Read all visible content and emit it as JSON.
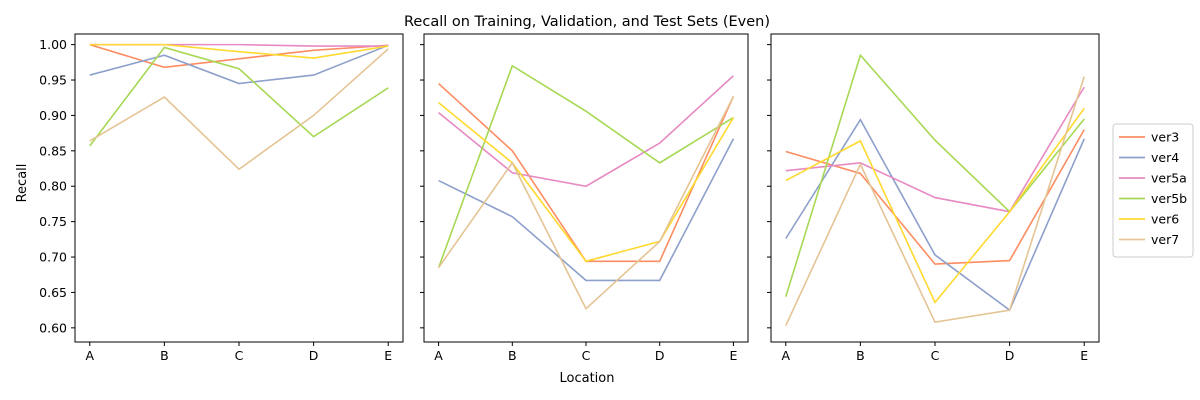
{
  "figure": {
    "title": "Recall on Training, Validation, and Test Sets (Even)",
    "xlabel": "Location",
    "ylabel": "Recall"
  },
  "colors": {
    "ver3": "#fc8d62",
    "ver4": "#8da0cb",
    "ver5a": "#e78ac3",
    "ver5b": "#a6d854",
    "ver6": "#ffd92f",
    "ver7": "#e5c494"
  },
  "chart_data": [
    {
      "type": "line",
      "categories": [
        "A",
        "B",
        "C",
        "D",
        "E"
      ],
      "ylim": [
        0.58,
        1.015
      ],
      "yticks": [
        "0.60",
        "0.65",
        "0.70",
        "0.75",
        "0.80",
        "0.85",
        "0.90",
        "0.95",
        "1.00"
      ],
      "grid": false,
      "series": [
        {
          "name": "ver3",
          "values": [
            1.0,
            0.968,
            0.98,
            0.992,
            0.999
          ]
        },
        {
          "name": "ver4",
          "values": [
            0.957,
            0.985,
            0.945,
            0.957,
            0.999
          ]
        },
        {
          "name": "ver5a",
          "values": [
            1.0,
            1.0,
            1.0,
            0.998,
            0.998
          ]
        },
        {
          "name": "ver5b",
          "values": [
            0.857,
            0.996,
            0.966,
            0.87,
            0.939
          ]
        },
        {
          "name": "ver6",
          "values": [
            1.0,
            1.0,
            0.99,
            0.981,
            0.998
          ]
        },
        {
          "name": "ver7",
          "values": [
            0.864,
            0.926,
            0.824,
            0.9,
            0.994
          ]
        }
      ]
    },
    {
      "type": "line",
      "categories": [
        "A",
        "B",
        "C",
        "D",
        "E"
      ],
      "ylim": [
        0.58,
        1.015
      ],
      "grid": false,
      "series": [
        {
          "name": "ver3",
          "values": [
            0.945,
            0.85,
            0.694,
            0.694,
            0.927
          ]
        },
        {
          "name": "ver4",
          "values": [
            0.808,
            0.757,
            0.667,
            0.667,
            0.867
          ]
        },
        {
          "name": "ver5a",
          "values": [
            0.904,
            0.819,
            0.8,
            0.861,
            0.956
          ]
        },
        {
          "name": "ver5b",
          "values": [
            0.685,
            0.97,
            0.906,
            0.833,
            0.897
          ]
        },
        {
          "name": "ver6",
          "values": [
            0.918,
            0.833,
            0.694,
            0.722,
            0.897
          ]
        },
        {
          "name": "ver7",
          "values": [
            0.685,
            0.833,
            0.627,
            0.722,
            0.927
          ]
        }
      ]
    },
    {
      "type": "line",
      "categories": [
        "A",
        "B",
        "C",
        "D",
        "E"
      ],
      "ylim": [
        0.58,
        1.015
      ],
      "grid": false,
      "legend": "outside-right",
      "series": [
        {
          "name": "ver3",
          "values": [
            0.849,
            0.818,
            0.69,
            0.695,
            0.88
          ]
        },
        {
          "name": "ver4",
          "values": [
            0.726,
            0.894,
            0.703,
            0.625,
            0.867
          ]
        },
        {
          "name": "ver5a",
          "values": [
            0.822,
            0.833,
            0.784,
            0.764,
            0.94
          ]
        },
        {
          "name": "ver5b",
          "values": [
            0.644,
            0.985,
            0.865,
            0.764,
            0.895
          ]
        },
        {
          "name": "ver6",
          "values": [
            0.808,
            0.864,
            0.636,
            0.764,
            0.91
          ]
        },
        {
          "name": "ver7",
          "values": [
            0.603,
            0.831,
            0.608,
            0.625,
            0.955
          ]
        }
      ]
    }
  ]
}
